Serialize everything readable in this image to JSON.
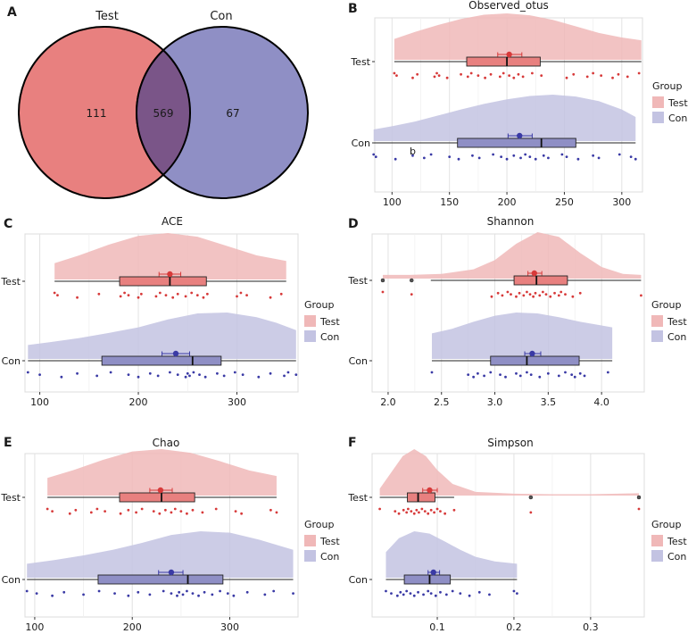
{
  "colors": {
    "test": "#e8807f",
    "con": "#8f8fc5",
    "test_dot": "#d73a3a",
    "con_dot": "#3a3aa5",
    "overlap": "#7a5588",
    "test_light": "#f0b8b8",
    "con_light": "#c3c3e2"
  },
  "chart_data": [
    {
      "type": "venn",
      "panel": "A",
      "sets": [
        "Test",
        "Con"
      ],
      "values": {
        "test_only": "111",
        "both": "569",
        "con_only": "67"
      }
    },
    {
      "type": "raincloud",
      "panel": "B",
      "title": "Observed_otus",
      "xlim": [
        85,
        318
      ],
      "ticks": [
        100,
        150,
        200,
        250,
        300
      ],
      "tick_labels": [
        "100",
        "150",
        "200",
        "250",
        "300"
      ],
      "legend": {
        "title": "Group",
        "items": [
          "Test",
          "Con"
        ]
      },
      "annotation": "b",
      "series": [
        {
          "name": "Test",
          "min": 102,
          "q1": 165,
          "median": 200,
          "q3": 229,
          "max": 317,
          "mean": 202,
          "se": [
            192,
            213
          ],
          "kde_x": [
            102,
            120,
            140,
            160,
            180,
            200,
            220,
            240,
            260,
            280,
            300,
            317
          ],
          "kde_y": [
            0.45,
            0.6,
            0.75,
            0.88,
            0.97,
            1.0,
            0.96,
            0.86,
            0.72,
            0.58,
            0.48,
            0.42
          ],
          "points": [
            102,
            104,
            118,
            122,
            137,
            139,
            141,
            148,
            160,
            166,
            169,
            175,
            181,
            186,
            194,
            197,
            202,
            206,
            210,
            214,
            222,
            230,
            252,
            258,
            270,
            275,
            282,
            292,
            297,
            305,
            315
          ]
        },
        {
          "name": "Con",
          "min": 84,
          "q1": 157,
          "median": 230,
          "q3": 260,
          "max": 312,
          "mean": 211,
          "se": [
            201,
            222
          ],
          "kde_x": [
            84,
            100,
            120,
            140,
            160,
            180,
            200,
            220,
            240,
            260,
            280,
            300,
            312
          ],
          "kde_y": [
            0.25,
            0.32,
            0.42,
            0.55,
            0.68,
            0.8,
            0.9,
            0.97,
            1.0,
            0.96,
            0.86,
            0.68,
            0.52
          ],
          "points": [
            84,
            86,
            103,
            118,
            128,
            134,
            150,
            158,
            170,
            176,
            188,
            195,
            200,
            206,
            212,
            216,
            220,
            225,
            232,
            236,
            248,
            252,
            262,
            275,
            280,
            298,
            308,
            312
          ]
        }
      ]
    },
    {
      "type": "raincloud",
      "panel": "C",
      "title": "ACE",
      "xlim": [
        85,
        362
      ],
      "ticks": [
        100,
        200,
        300
      ],
      "tick_labels": [
        "100",
        "200",
        "300"
      ],
      "legend": {
        "title": "Group",
        "items": [
          "Test",
          "Con"
        ]
      },
      "series": [
        {
          "name": "Test",
          "min": 115,
          "q1": 181,
          "median": 232,
          "q3": 269,
          "max": 350,
          "mean": 232,
          "se": [
            221,
            243
          ],
          "kde_x": [
            115,
            140,
            170,
            200,
            230,
            260,
            290,
            320,
            350
          ],
          "kde_y": [
            0.35,
            0.52,
            0.75,
            0.94,
            1.0,
            0.92,
            0.72,
            0.52,
            0.4
          ],
          "points": [
            115,
            118,
            138,
            160,
            182,
            186,
            190,
            200,
            203,
            218,
            222,
            228,
            235,
            240,
            248,
            254,
            260,
            266,
            270,
            300,
            304,
            310,
            334,
            345
          ]
        },
        {
          "name": "Con",
          "min": 88,
          "q1": 163,
          "median": 255,
          "q3": 284,
          "max": 360,
          "mean": 238,
          "se": [
            224,
            252
          ],
          "kde_x": [
            88,
            110,
            140,
            170,
            200,
            230,
            260,
            290,
            320,
            340,
            360
          ],
          "kde_y": [
            0.3,
            0.36,
            0.45,
            0.56,
            0.68,
            0.85,
            0.98,
            1.0,
            0.9,
            0.78,
            0.62
          ],
          "points": [
            88,
            100,
            122,
            138,
            158,
            172,
            190,
            200,
            212,
            220,
            232,
            240,
            248,
            250,
            252,
            256,
            262,
            268,
            280,
            287,
            298,
            306,
            322,
            334,
            348,
            352,
            360
          ]
        }
      ]
    },
    {
      "type": "raincloud",
      "panel": "D",
      "title": "Shannon",
      "xlim": [
        1.85,
        4.4
      ],
      "ticks": [
        2.0,
        2.5,
        3.0,
        3.5,
        4.0
      ],
      "tick_labels": [
        "2.0",
        "2.5",
        "3.0",
        "3.5",
        "4.0"
      ],
      "legend": {
        "title": "Group",
        "items": [
          "Test",
          "Con"
        ]
      },
      "series": [
        {
          "name": "Test",
          "min": 2.4,
          "q1": 3.18,
          "median": 3.39,
          "q3": 3.68,
          "max": 4.37,
          "mean": 3.37,
          "se": [
            3.31,
            3.44
          ],
          "outliers": [
            1.95,
            2.22
          ],
          "kde_x": [
            1.95,
            2.2,
            2.5,
            2.8,
            3.0,
            3.2,
            3.4,
            3.6,
            3.8,
            4.0,
            4.2,
            4.37
          ],
          "kde_y": [
            0.08,
            0.08,
            0.1,
            0.2,
            0.4,
            0.75,
            1.0,
            0.9,
            0.55,
            0.25,
            0.1,
            0.08
          ],
          "points": [
            1.95,
            2.22,
            2.97,
            3.03,
            3.07,
            3.12,
            3.15,
            3.2,
            3.23,
            3.27,
            3.3,
            3.33,
            3.36,
            3.38,
            3.42,
            3.45,
            3.48,
            3.52,
            3.56,
            3.6,
            3.62,
            3.66,
            3.73,
            3.8,
            4.37
          ]
        },
        {
          "name": "Con",
          "min": 2.41,
          "q1": 2.96,
          "median": 3.3,
          "q3": 3.79,
          "max": 4.1,
          "mean": 3.35,
          "se": [
            3.28,
            3.43
          ],
          "kde_x": [
            2.41,
            2.6,
            2.8,
            3.0,
            3.2,
            3.4,
            3.6,
            3.8,
            4.0,
            4.1
          ],
          "kde_y": [
            0.55,
            0.65,
            0.8,
            0.93,
            1.0,
            0.98,
            0.9,
            0.8,
            0.72,
            0.68
          ],
          "points": [
            2.41,
            2.75,
            2.8,
            2.84,
            2.9,
            2.96,
            3.05,
            3.1,
            3.2,
            3.24,
            3.3,
            3.34,
            3.42,
            3.5,
            3.6,
            3.66,
            3.72,
            3.75,
            3.8,
            3.84,
            4.06
          ]
        }
      ]
    },
    {
      "type": "raincloud",
      "panel": "E",
      "title": "Chao",
      "xlim": [
        90,
        370
      ],
      "ticks": [
        100,
        200,
        300
      ],
      "tick_labels": [
        "100",
        "200",
        "300"
      ],
      "legend": {
        "title": "Group",
        "items": [
          "Test",
          "Con"
        ]
      },
      "series": [
        {
          "name": "Test",
          "min": 113,
          "q1": 187,
          "median": 230,
          "q3": 264,
          "max": 348,
          "mean": 229,
          "se": [
            218,
            241
          ],
          "kde_x": [
            113,
            140,
            170,
            200,
            230,
            260,
            290,
            320,
            348
          ],
          "kde_y": [
            0.38,
            0.55,
            0.77,
            0.95,
            1.0,
            0.92,
            0.74,
            0.54,
            0.42
          ],
          "points": [
            113,
            118,
            136,
            142,
            158,
            164,
            172,
            188,
            196,
            204,
            210,
            222,
            228,
            234,
            240,
            244,
            250,
            256,
            262,
            272,
            286,
            306,
            312,
            342,
            348
          ]
        },
        {
          "name": "Con",
          "min": 92,
          "q1": 165,
          "median": 257,
          "q3": 293,
          "max": 365,
          "mean": 240,
          "se": [
            227,
            252
          ],
          "kde_x": [
            92,
            120,
            150,
            180,
            210,
            240,
            270,
            300,
            330,
            365
          ],
          "kde_y": [
            0.3,
            0.38,
            0.48,
            0.6,
            0.75,
            0.92,
            1.0,
            0.97,
            0.82,
            0.6
          ],
          "points": [
            92,
            102,
            118,
            130,
            150,
            166,
            182,
            196,
            206,
            218,
            232,
            240,
            246,
            248,
            252,
            256,
            262,
            268,
            274,
            282,
            290,
            298,
            304,
            318,
            336,
            345,
            365
          ]
        }
      ]
    },
    {
      "type": "raincloud",
      "panel": "F",
      "title": "Simpson",
      "xlim": [
        0.015,
        0.37
      ],
      "ticks": [
        0.1,
        0.2,
        0.3
      ],
      "tick_labels": [
        "0.1",
        "0.2",
        "0.3"
      ],
      "legend": {
        "title": "Group",
        "items": [
          "Test",
          "Con"
        ]
      },
      "series": [
        {
          "name": "Test",
          "min": 0.025,
          "q1": 0.061,
          "median": 0.075,
          "q3": 0.097,
          "max": 0.122,
          "mean": 0.09,
          "se": [
            0.081,
            0.1
          ],
          "outliers": [
            0.222,
            0.363
          ],
          "kde_x": [
            0.025,
            0.04,
            0.055,
            0.07,
            0.085,
            0.1,
            0.12,
            0.15,
            0.2,
            0.25,
            0.3,
            0.363
          ],
          "kde_y": [
            0.15,
            0.5,
            0.85,
            1.0,
            0.85,
            0.55,
            0.25,
            0.08,
            0.04,
            0.03,
            0.03,
            0.05
          ],
          "points": [
            0.025,
            0.045,
            0.05,
            0.056,
            0.06,
            0.062,
            0.066,
            0.07,
            0.073,
            0.076,
            0.08,
            0.084,
            0.088,
            0.092,
            0.096,
            0.1,
            0.104,
            0.11,
            0.122,
            0.222,
            0.363
          ]
        },
        {
          "name": "Con",
          "min": 0.033,
          "q1": 0.057,
          "median": 0.09,
          "q3": 0.117,
          "max": 0.204,
          "mean": 0.095,
          "se": [
            0.088,
            0.103
          ],
          "kde_x": [
            0.033,
            0.05,
            0.07,
            0.09,
            0.11,
            0.13,
            0.15,
            0.175,
            0.204
          ],
          "kde_y": [
            0.55,
            0.85,
            1.0,
            0.95,
            0.78,
            0.6,
            0.45,
            0.35,
            0.3
          ],
          "points": [
            0.033,
            0.04,
            0.048,
            0.052,
            0.056,
            0.06,
            0.065,
            0.07,
            0.075,
            0.082,
            0.088,
            0.092,
            0.098,
            0.104,
            0.112,
            0.12,
            0.13,
            0.142,
            0.155,
            0.168,
            0.2,
            0.204
          ]
        }
      ]
    }
  ]
}
